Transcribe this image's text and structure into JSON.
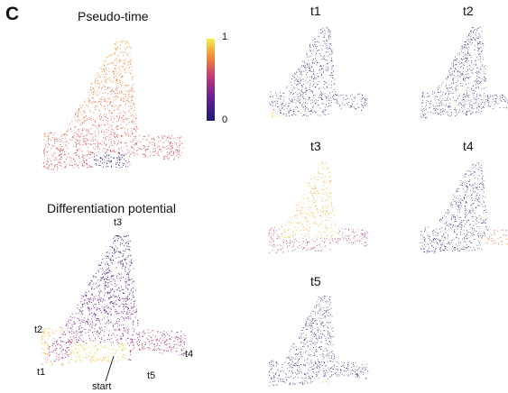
{
  "panel_label": "C",
  "main_plots": {
    "pseudotime_title": "Pseudo-time",
    "potential_title": "Differentiation potential"
  },
  "colorbar": {
    "max_label": "1",
    "min_label": "0"
  },
  "small_plots": [
    "t1",
    "t2",
    "t3",
    "t4",
    "t5"
  ],
  "annotations": {
    "t1": "t1",
    "t2": "t2",
    "t3": "t3",
    "t4": "t4",
    "t5": "t5",
    "start": "start"
  },
  "colors": {
    "low": "#1b1d72",
    "mid": "#b2307a",
    "high": "#f2e94a"
  }
}
